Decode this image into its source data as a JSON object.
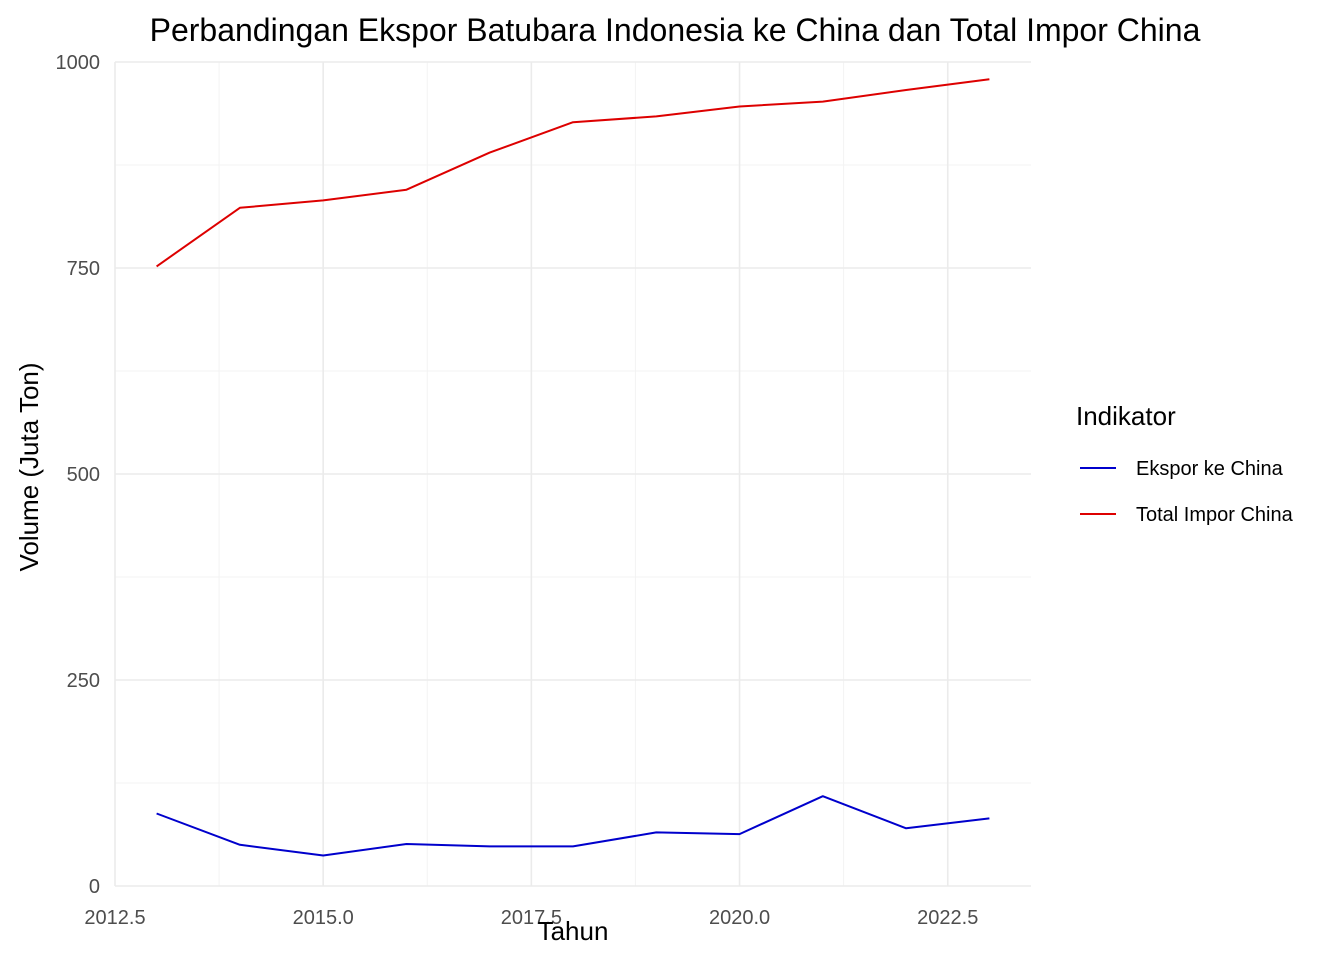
{
  "chart_data": {
    "type": "line",
    "title": "Perbandingan Ekspor Batubara Indonesia ke China dan Total Impor China",
    "xlabel": "Tahun",
    "ylabel": "Volume (Juta Ton)",
    "xlim": [
      2012.5,
      2023.5
    ],
    "ylim": [
      0,
      1000
    ],
    "x_ticks": [
      "2012.5",
      "2015.0",
      "2017.5",
      "2020.0",
      "2022.5"
    ],
    "y_ticks": [
      "0",
      "250",
      "500",
      "750",
      "1000"
    ],
    "grid": true,
    "legend": {
      "title": "Indikator",
      "placement": "right"
    },
    "x": [
      2013,
      2014,
      2015,
      2016,
      2017,
      2018,
      2019,
      2020,
      2021,
      2022,
      2023
    ],
    "series": [
      {
        "name": "Ekspor ke China",
        "color": "#0000cc",
        "values": [
          88,
          50,
          37,
          51,
          48,
          48,
          65,
          63,
          109,
          70,
          82
        ]
      },
      {
        "name": "Total Impor China",
        "color": "#dd0000",
        "values": [
          752,
          823,
          832,
          845,
          890,
          927,
          934,
          946,
          952,
          966,
          979
        ]
      }
    ]
  }
}
